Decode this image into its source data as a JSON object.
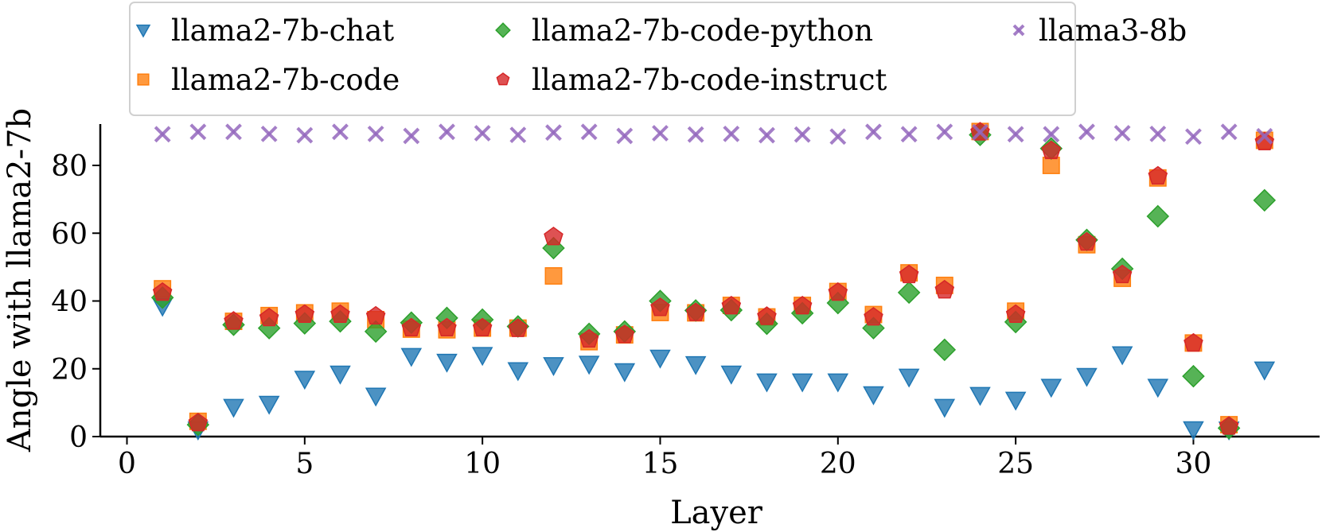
{
  "chart_data": {
    "type": "scatter",
    "title": "",
    "xlabel": "Layer",
    "ylabel": "Angle with llama2-7b",
    "xlim": [
      -0.75,
      33.55
    ],
    "ylim": [
      0,
      92.2
    ],
    "xticks": [
      0,
      5,
      10,
      15,
      20,
      25,
      30
    ],
    "yticks": [
      0,
      20,
      40,
      60,
      80
    ],
    "grid": false,
    "legend_position": "top",
    "x": [
      1,
      2,
      3,
      4,
      5,
      6,
      7,
      8,
      9,
      10,
      11,
      12,
      13,
      14,
      15,
      16,
      17,
      18,
      19,
      20,
      21,
      22,
      23,
      24,
      25,
      26,
      27,
      28,
      29,
      30,
      31,
      32
    ],
    "series": [
      {
        "name": "llama2-7b-chat",
        "marker": "triangle-down",
        "color": "#1f77b4",
        "values": [
          38.5,
          2.0,
          8.7,
          9.6,
          17.0,
          18.5,
          12.0,
          23.7,
          22.0,
          24.0,
          19.5,
          21.0,
          21.4,
          19.2,
          23.2,
          21.3,
          18.5,
          16.2,
          16.2,
          16.2,
          12.4,
          17.6,
          8.7,
          12.2,
          10.8,
          14.6,
          17.8,
          24.2,
          14.6,
          2.1,
          2.0,
          19.7
        ]
      },
      {
        "name": "llama2-7b-code",
        "marker": "square",
        "color": "#ff7f0e",
        "values": [
          43.6,
          4.5,
          34.0,
          35.7,
          36.5,
          37.0,
          34.5,
          31.7,
          31.5,
          32.0,
          32.0,
          47.4,
          28.0,
          30.0,
          36.6,
          36.5,
          38.7,
          35.3,
          38.7,
          42.8,
          36.0,
          48.3,
          44.6,
          90.0,
          37.0,
          80.0,
          56.6,
          46.7,
          76.3,
          27.6,
          3.5,
          87.4
        ]
      },
      {
        "name": "llama2-7b-code-python",
        "marker": "diamond",
        "color": "#2ca02c",
        "values": [
          41.0,
          3.5,
          33.0,
          32.0,
          33.4,
          34.0,
          31.0,
          33.6,
          35.0,
          34.5,
          32.5,
          55.6,
          30.3,
          31.0,
          40.0,
          37.2,
          37.3,
          33.3,
          36.4,
          39.4,
          32.0,
          42.5,
          25.6,
          89.0,
          33.8,
          85.0,
          58.0,
          49.5,
          65.0,
          17.8,
          2.5,
          69.7
        ]
      },
      {
        "name": "llama2-7b-code-instruct",
        "marker": "pentagon",
        "color": "#d62728",
        "values": [
          42.5,
          4.0,
          34.0,
          35.0,
          36.0,
          36.0,
          35.5,
          32.0,
          32.0,
          32.0,
          31.8,
          58.9,
          28.7,
          30.0,
          38.0,
          36.5,
          38.5,
          35.4,
          38.5,
          42.5,
          35.2,
          47.7,
          43.2,
          89.8,
          36.0,
          84.3,
          57.3,
          47.7,
          76.8,
          27.5,
          3.0,
          86.9
        ]
      },
      {
        "name": "llama3-8b",
        "marker": "x",
        "color": "#9467bd",
        "values": [
          89.2,
          89.9,
          89.9,
          89.3,
          88.9,
          89.9,
          89.3,
          88.7,
          89.9,
          89.5,
          89.0,
          89.7,
          89.9,
          88.7,
          89.5,
          89.1,
          89.3,
          88.9,
          89.1,
          88.5,
          89.9,
          89.2,
          89.9,
          89.8,
          89.2,
          89.2,
          89.9,
          89.5,
          89.3,
          88.5,
          89.9,
          88.6
        ]
      }
    ],
    "legend_order": [
      0,
      3,
      2,
      4,
      1
    ]
  }
}
